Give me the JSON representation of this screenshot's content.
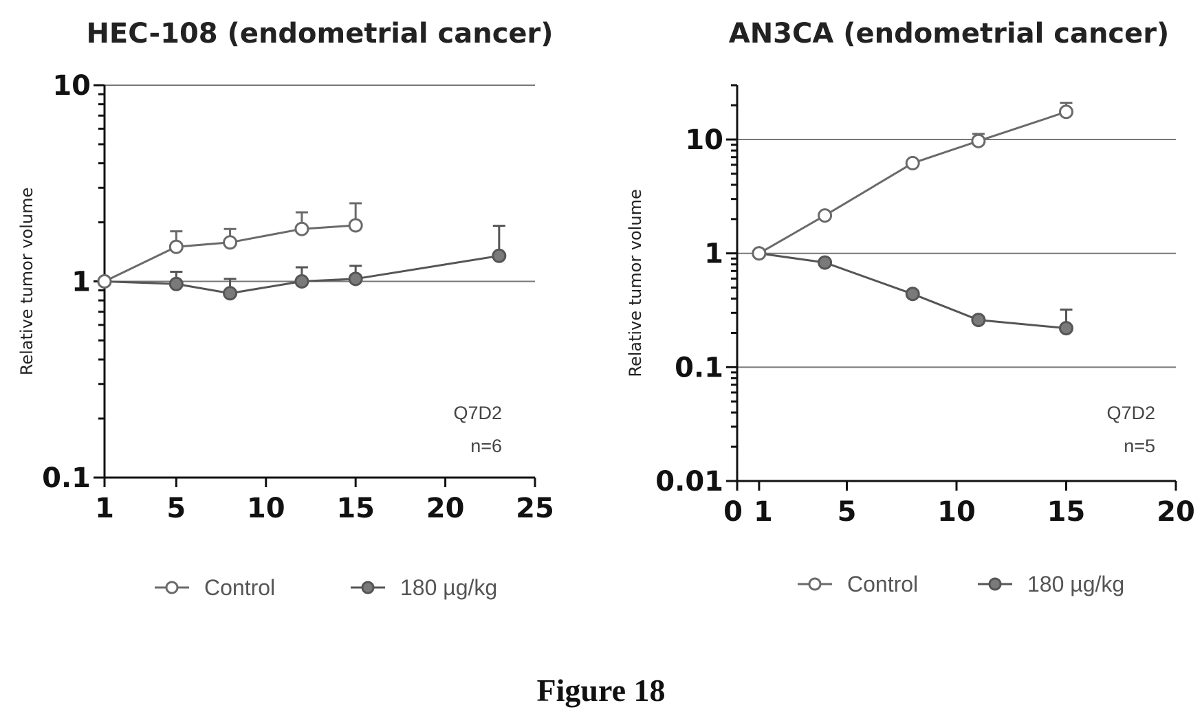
{
  "figure_caption": "Figure 18",
  "chart_data": [
    {
      "type": "line",
      "title": "HEC-108 (endometrial cancer)",
      "ylabel": "Relative tumor volume",
      "xlabel": "",
      "yscale": "log",
      "ylim": [
        0.1,
        10
      ],
      "xlim": [
        1,
        25
      ],
      "xticks": [
        1,
        5,
        10,
        15,
        20,
        25
      ],
      "yticks": [
        0.1,
        1,
        10
      ],
      "ytick_labels": [
        "0.1",
        "1",
        "10"
      ],
      "gridlines_y": [
        1,
        10
      ],
      "annotation": [
        "Q7D2",
        "n=6"
      ],
      "series": [
        {
          "name": "Control",
          "marker": "open-circle",
          "x": [
            1,
            5,
            8,
            12,
            15
          ],
          "y": [
            1.0,
            1.5,
            1.58,
            1.85,
            1.93
          ],
          "err_upper": [
            1.0,
            1.8,
            1.85,
            2.25,
            2.5
          ]
        },
        {
          "name": "180 µg/kg",
          "marker": "filled-circle",
          "x": [
            1,
            5,
            8,
            12,
            15,
            23
          ],
          "y": [
            1.0,
            0.97,
            0.87,
            1.0,
            1.03,
            1.35
          ],
          "err_upper": [
            1.0,
            1.12,
            1.03,
            1.18,
            1.2,
            1.92
          ]
        }
      ]
    },
    {
      "type": "line",
      "title": "AN3CA (endometrial cancer)",
      "ylabel": "Relative tumor volume",
      "xlabel": "",
      "yscale": "log",
      "ylim": [
        0.01,
        30
      ],
      "xlim": [
        0,
        20
      ],
      "xticks": [
        0,
        1,
        5,
        10,
        15,
        20
      ],
      "yticks": [
        0.01,
        0.1,
        1,
        10
      ],
      "ytick_labels": [
        "0.01",
        "0.1",
        "1",
        "10"
      ],
      "gridlines_y": [
        0.1,
        1,
        10
      ],
      "annotation": [
        "Q7D2",
        "n=5"
      ],
      "series": [
        {
          "name": "Control",
          "marker": "open-circle",
          "x": [
            1,
            4,
            8,
            11,
            15
          ],
          "y": [
            1.0,
            2.15,
            6.2,
            9.7,
            17.5
          ],
          "err_upper": [
            1.0,
            2.15,
            6.2,
            11.2,
            21.0
          ]
        },
        {
          "name": "180 µg/kg",
          "marker": "filled-circle",
          "x": [
            1,
            4,
            8,
            11,
            15
          ],
          "y": [
            1.0,
            0.83,
            0.44,
            0.26,
            0.22
          ],
          "err_upper": [
            1.0,
            0.83,
            0.44,
            0.26,
            0.32
          ]
        }
      ]
    }
  ],
  "colors": {
    "control_stroke": "#6a6a6a",
    "treated_fill": "#7a7a7a",
    "treated_stroke": "#555555"
  }
}
